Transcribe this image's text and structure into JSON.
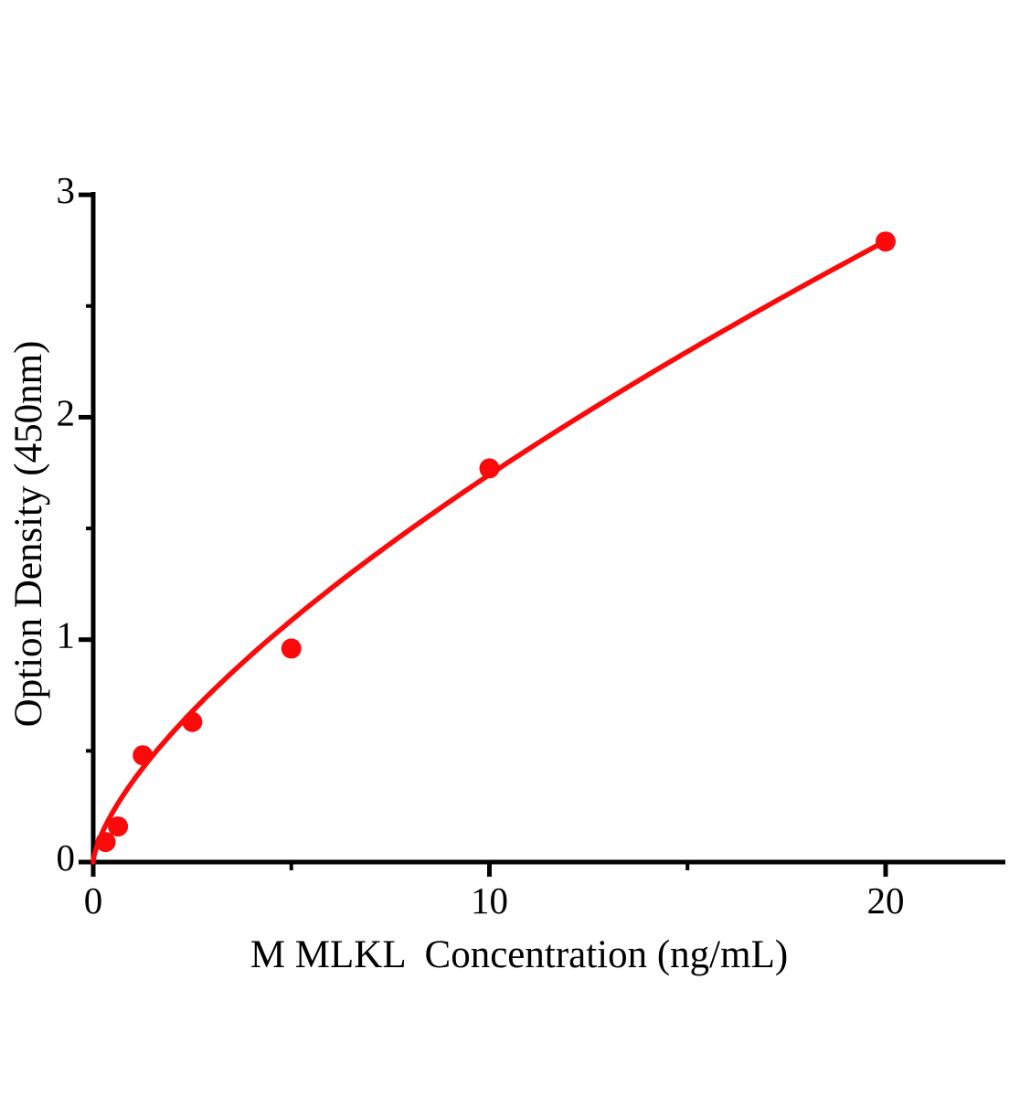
{
  "chart_data": {
    "type": "scatter",
    "title": "",
    "xlabel": "M MLKL  Concentration (ng/mL)",
    "ylabel": "Option Density (450nm)",
    "xlim": [
      0,
      23
    ],
    "ylim": [
      0,
      3
    ],
    "grid": false,
    "legend": null,
    "x_ticks_major": [
      0,
      10,
      20
    ],
    "x_tick_labels": [
      "0",
      "10",
      "20"
    ],
    "x_ticks_minor": [
      5,
      15
    ],
    "y_ticks_major": [
      0,
      1,
      2,
      3
    ],
    "y_tick_labels": [
      "0",
      "1",
      "2",
      "3"
    ],
    "y_ticks_minor": [
      0.5,
      1.5,
      2.5
    ],
    "points": [
      {
        "x": 0.313,
        "y": 0.09
      },
      {
        "x": 0.625,
        "y": 0.16
      },
      {
        "x": 1.25,
        "y": 0.48
      },
      {
        "x": 2.5,
        "y": 0.63
      },
      {
        "x": 5,
        "y": 0.96
      },
      {
        "x": 10,
        "y": 1.77
      },
      {
        "x": 20,
        "y": 2.79
      }
    ],
    "fit_curve": {
      "type": "power",
      "a": 0.363,
      "b": 0.681,
      "x_start": 0,
      "x_end": 20
    },
    "colors": {
      "series": "#fa0a0a",
      "axis": "#000000",
      "background": "#ffffff"
    }
  }
}
